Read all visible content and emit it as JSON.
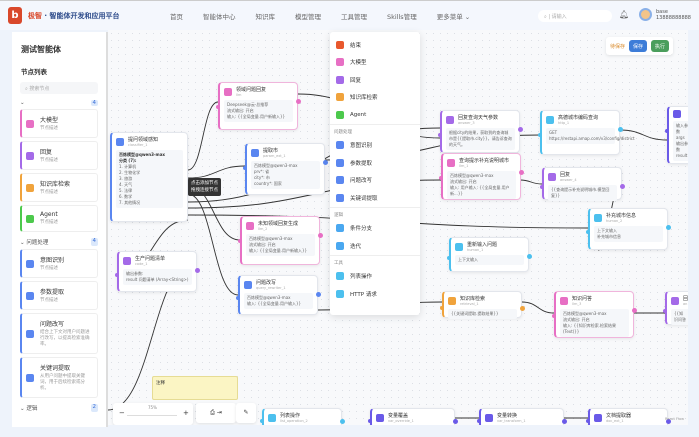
{
  "header": {
    "logo_text": "b",
    "brand_name": "极智",
    "brand_sub": "智能体开发和应用平台",
    "nav": [
      "首页",
      "智能体中心",
      "知识库",
      "模型管理",
      "工具管理",
      "Skills管理",
      "更多菜单 ⌄"
    ],
    "search_placeholder": "请输入",
    "user_name": "base",
    "user_phone": "13888888888"
  },
  "sidebar": {
    "title": "测试智能体",
    "list_title": "节点列表",
    "search_placeholder": "搜索节点",
    "groups": [
      {
        "label": "",
        "count": "4",
        "items": [
          {
            "label": "大模型",
            "desc": "节点描述",
            "color": "#e76fc4"
          },
          {
            "label": "回复",
            "desc": "节点描述",
            "color": "#a46ae8"
          },
          {
            "label": "知识库检索",
            "desc": "节点描述",
            "color": "#f0a33c"
          },
          {
            "label": "Agent",
            "desc": "节点描述",
            "color": "#4cc94c"
          }
        ]
      },
      {
        "label": "问题处理",
        "count": "4",
        "items": [
          {
            "label": "意图识别",
            "desc": "节点描述",
            "color": "#5a86f0"
          },
          {
            "label": "参数提取",
            "desc": "节点描述",
            "color": "#5a86f0"
          },
          {
            "label": "问题改写",
            "desc": "结合上下文对用户问题进行改写，以提高检索准确率。",
            "color": "#5a86f0"
          },
          {
            "label": "关键词提取",
            "desc": "从用户问题中提取关键词，用于后续检索或分析。",
            "color": "#5a86f0"
          }
        ]
      },
      {
        "label": "逻辑",
        "count": "2",
        "items": []
      }
    ]
  },
  "menu": {
    "items": [
      {
        "label": "结束",
        "color": "#e8582d"
      },
      {
        "label": "大模型",
        "color": "#e76fc4"
      },
      {
        "label": "回复",
        "color": "#a46ae8"
      },
      {
        "label": "知识库检索",
        "color": "#f0a33c"
      },
      {
        "label": "Agent",
        "color": "#4cc94c"
      }
    ],
    "sections": [
      {
        "title": "问题处理",
        "items": [
          {
            "label": "意图识别",
            "color": "#5a86f0"
          },
          {
            "label": "参数提取",
            "color": "#5a86f0"
          },
          {
            "label": "问题改写",
            "color": "#5a86f0"
          },
          {
            "label": "关键词提取",
            "color": "#5a86f0"
          }
        ]
      },
      {
        "title": "逻辑",
        "items": [
          {
            "label": "条件分支",
            "color": "#4aa8f0"
          },
          {
            "label": "迭代",
            "color": "#4aa8f0"
          }
        ]
      },
      {
        "title": "工具",
        "items": [
          {
            "label": "列表操作",
            "color": "#4cc0ee"
          },
          {
            "label": "HTTP 请求",
            "color": "#4cc0ee"
          }
        ]
      }
    ]
  },
  "toolbar": {
    "status": "待保存",
    "save": "保存",
    "run": "执行",
    "save_color": "#3d7dd8",
    "run_color": "#4a9e5c"
  },
  "tooltip": {
    "line1": "点击添加节点",
    "line2": "拖拽连接节点"
  },
  "classifier": {
    "title": "提问领域感知",
    "id": "classifier_1",
    "model": "百炼模型@qwen3-max",
    "count_label": "分类 (7):",
    "classes": [
      "1. 计算机",
      "2. 生物化学",
      "3. 旅游",
      "4. 天气",
      "5. 法律",
      "6. 数学",
      "7. 其他情况"
    ]
  },
  "nodes": [
    {
      "title": "领域问题回复",
      "id": "llm",
      "lines": [
        "Deepseek@云-总推荐",
        "流式输出: 开启",
        "输入: {{全局变量.用户新输入}}"
      ],
      "color": "#e76fc4"
    },
    {
      "title": "提取市",
      "id": "param_ext_1",
      "lines": [
        "百炼模型@qwen3-max",
        "prv*: 省",
        "city*: 市",
        "country*: 国家"
      ],
      "color": "#5a86f0"
    },
    {
      "title": "未知领域回复生成",
      "id": "llm_2",
      "lines": [
        "百炼模型@qwen3-max",
        "流式输出: 开启",
        "输入: {{全局变量.用户新输入}}"
      ],
      "color": "#e76fc4"
    },
    {
      "title": "生产问题清单",
      "id": "code_1",
      "lines": [
        "输出参数:",
        "result    问题清单 (Array<String>)"
      ],
      "color": "#a46ae8"
    },
    {
      "title": "问题改写",
      "id": "query_rewriter_1",
      "lines": [
        "百炼模型@qwen3-max",
        "输入: {{全局变量.用户输入}}"
      ],
      "color": "#5a86f0"
    },
    {
      "title": "回复查询天气参数",
      "id": "answer_3",
      "lines": [
        "根据city的结果，获取到的查询城市是{{提取市.city}}，请告诉查询的天气。"
      ],
      "color": "#a46ae8"
    },
    {
      "title": "查询提示补充说明城市",
      "id": "llm_1",
      "lines": [
        "百炼模型@qwen3-max",
        "流式输出: 开启",
        "输入: 用户输入: {{全局变量.用户新...}}"
      ],
      "color": "#e76fc4"
    },
    {
      "title": "高德城市编码查询",
      "id": "http_1",
      "lines": [
        "GET",
        "https://restapi.amap.com/v3/config/district"
      ],
      "color": "#4cc0ee"
    },
    {
      "title": "回复",
      "id": "answer_4",
      "lines": [
        "{{查询提示补充说明城市.模型回复}}"
      ],
      "color": "#a46ae8"
    },
    {
      "title": "补充城市信息",
      "id": "human_2",
      "lines": [
        "上下文输入",
        "补充城市信息"
      ],
      "color": "#4cc0ee"
    },
    {
      "title": "",
      "id": "",
      "lines": [
        "输入参数",
        "args",
        "输出参数",
        "result"
      ],
      "color": "#6a5ae8"
    },
    {
      "title": "重新输入问题",
      "id": "human_1",
      "lines": [
        "上下文输入"
      ],
      "color": "#4cc0ee"
    },
    {
      "title": "知识库检索",
      "id": "retrieval_1",
      "lines": [
        "{{关键词提取.提取结果}}"
      ],
      "color": "#f0a33c"
    },
    {
      "title": "知识问答",
      "id": "llm_3",
      "lines": [
        "百炼模型@qwen3-max",
        "流式输出: 开启",
        "输入: {{知识库检索.检索结果(Text)}}"
      ],
      "color": "#e76fc4"
    },
    {
      "title": "回",
      "id": "an",
      "lines": [
        "{{知识问答"
      ],
      "color": "#a46ae8"
    },
    {
      "title": "列表操作",
      "id": "list_operation_2",
      "lines": [],
      "color": "#4cc0ee"
    },
    {
      "title": "变量覆盖",
      "id": "var_override_1",
      "lines": [],
      "color": "#6a5ae8"
    },
    {
      "title": "变量转换",
      "id": "var_transform_1",
      "lines": [],
      "color": "#6a5ae8"
    },
    {
      "title": "文档提取器",
      "id": "doc_ext_1",
      "lines": [],
      "color": "#6a5ae8"
    }
  ],
  "comment": {
    "text": "注释"
  },
  "zoom": {
    "level": "75%",
    "minus": "−",
    "plus": "+"
  },
  "attribution": "React Flow"
}
